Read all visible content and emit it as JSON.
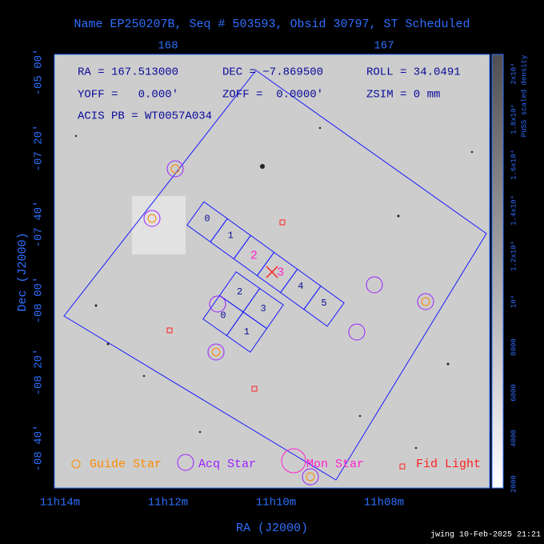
{
  "title": "Name EP250207B, Seq # 503593, Obsid 30797, ST Scheduled",
  "info": {
    "ra": "RA = 167.513000",
    "dec": "DEC = −7.869500",
    "roll": "ROLL = 34.0491",
    "yoff": "YOFF =   0.000'",
    "zoff": "ZOFF =  0.0000'",
    "zsim": "ZSIM = 0 mm",
    "acis": "ACIS PB = WT0057A034"
  },
  "axes": {
    "x_label": "RA (J2000)",
    "y_label": "Dec (J2000)",
    "top_ticks": [
      "168",
      "167"
    ],
    "bottom_ticks": [
      "11h14m",
      "11h12m",
      "11h10m",
      "11h08m"
    ],
    "left_ticks": [
      "-05 00'",
      "-07 20'",
      "-07 40'",
      "-08 00'",
      "-08 20'",
      "-08 40'"
    ]
  },
  "colorbar": {
    "label": "PUSS scaled density",
    "ticks": [
      "2000",
      "4000",
      "6000",
      "8000",
      "10⁴",
      "1.2x10⁴",
      "1.4x10⁴",
      "1.6x10⁴",
      "1.8x10⁴",
      "2x10⁴"
    ]
  },
  "chips": {
    "acis_i": [
      "2",
      "3",
      "0",
      "1"
    ],
    "acis_s": [
      "0",
      "1",
      "2",
      "3",
      "4",
      "5"
    ]
  },
  "legend": [
    "Guide Star",
    "Acq Star",
    "Mon Star",
    "Fid Light"
  ],
  "footer": "jwing 10-Feb-2025 21:21"
}
